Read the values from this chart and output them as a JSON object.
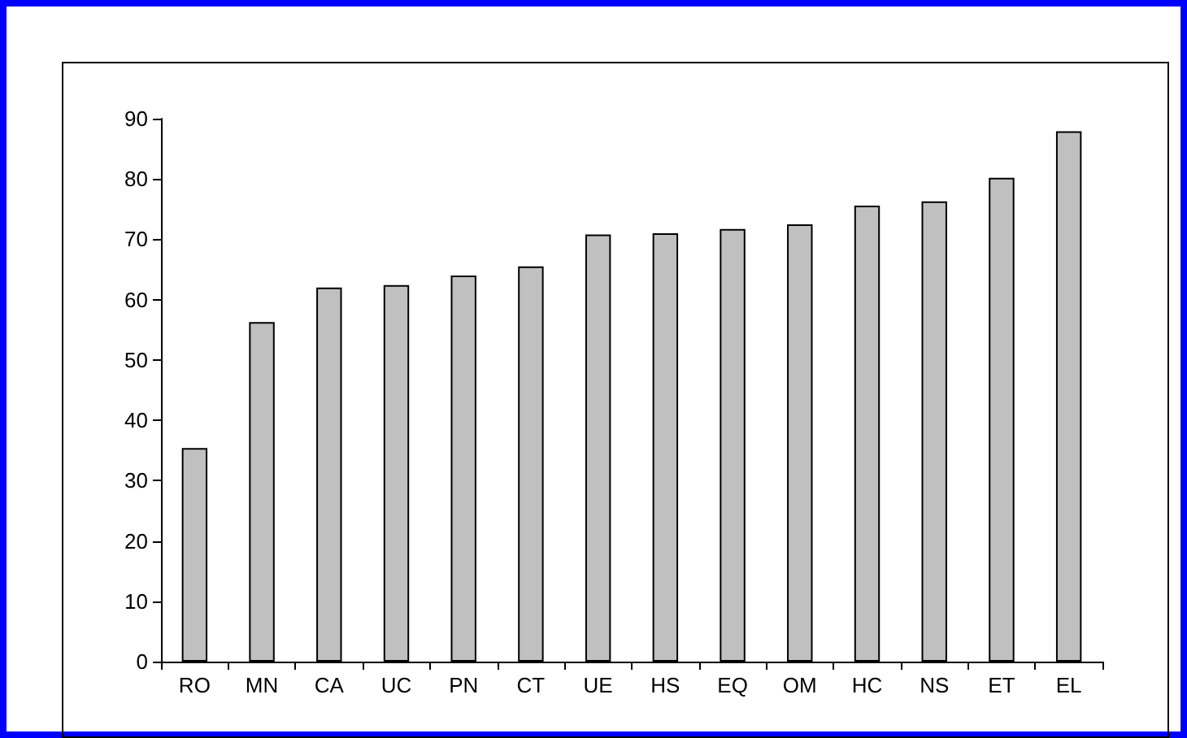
{
  "chart_data": {
    "type": "bar",
    "categories": [
      "RO",
      "MN",
      "CA",
      "UC",
      "PN",
      "CT",
      "UE",
      "HS",
      "EQ",
      "OM",
      "HC",
      "NS",
      "ET",
      "EL"
    ],
    "values": [
      35.4,
      56.3,
      62.0,
      62.4,
      64.0,
      65.5,
      70.8,
      71.0,
      71.7,
      72.5,
      75.6,
      76.3,
      80.2,
      87.9
    ],
    "color": "#c0c0c0",
    "ylim": [
      0,
      90
    ],
    "yticks": [
      0,
      10,
      20,
      30,
      40,
      50,
      60,
      70,
      80,
      90
    ],
    "grid": false
  }
}
